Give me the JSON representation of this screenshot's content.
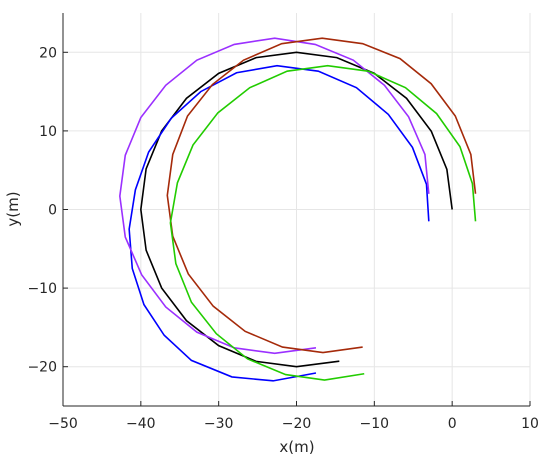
{
  "chart_data": {
    "type": "line",
    "title": "",
    "xlabel": "x(m)",
    "ylabel": "y(m)",
    "xlim": [
      -50,
      10
    ],
    "ylim": [
      -25,
      25
    ],
    "xticks": [
      -50,
      -40,
      -30,
      -20,
      -10,
      0,
      10
    ],
    "yticks": [
      -20,
      -10,
      0,
      10,
      20
    ],
    "xtick_labels": [
      "−50",
      "−40",
      "−30",
      "−20",
      "−10",
      "0",
      "10"
    ],
    "ytick_labels": [
      "−20",
      "−10",
      "0",
      "10",
      "20"
    ],
    "grid": true,
    "legend": "none",
    "series": [
      {
        "color": "#000000",
        "points": [
          [
            0,
            0
          ],
          [
            -0.68,
            5.11
          ],
          [
            -2.68,
            9.95
          ],
          [
            -5.86,
            14.14
          ],
          [
            -10,
            17.32
          ],
          [
            -14.82,
            19.32
          ],
          [
            -20,
            20
          ],
          [
            -25.18,
            19.32
          ],
          [
            -30,
            17.32
          ],
          [
            -34.14,
            14.14
          ],
          [
            -37.32,
            10
          ],
          [
            -39.32,
            5.18
          ],
          [
            -40,
            0
          ],
          [
            -39.32,
            -5.18
          ],
          [
            -37.32,
            -10
          ],
          [
            -34.14,
            -14.14
          ],
          [
            -30,
            -17.32
          ],
          [
            -25.18,
            -19.32
          ],
          [
            -20,
            -20
          ],
          [
            -14.5,
            -19.3
          ]
        ]
      },
      {
        "color": "#0000ff",
        "points": [
          [
            -3,
            -1.5
          ],
          [
            -3.3,
            3.2
          ],
          [
            -5.1,
            7.9
          ],
          [
            -8.2,
            12.1
          ],
          [
            -12.3,
            15.5
          ],
          [
            -17.2,
            17.6
          ],
          [
            -22.5,
            18.3
          ],
          [
            -27.7,
            17.4
          ],
          [
            -32.3,
            15
          ],
          [
            -36.1,
            11.6
          ],
          [
            -39,
            7.3
          ],
          [
            -40.7,
            2.5
          ],
          [
            -41.5,
            -2.5
          ],
          [
            -41.1,
            -7.5
          ],
          [
            -39.6,
            -12.1
          ],
          [
            -37,
            -16
          ],
          [
            -33.5,
            -19.2
          ],
          [
            -28.3,
            -21.3
          ],
          [
            -23,
            -21.8
          ],
          [
            -17.5,
            -20.8
          ]
        ]
      },
      {
        "color": "#9b30ff",
        "points": [
          [
            -3,
            2
          ],
          [
            -3.5,
            7
          ],
          [
            -5.6,
            11.8
          ],
          [
            -8.7,
            15.8
          ],
          [
            -12.7,
            19
          ],
          [
            -17.6,
            21
          ],
          [
            -22.8,
            21.8
          ],
          [
            -28,
            21
          ],
          [
            -32.8,
            19
          ],
          [
            -36.8,
            15.8
          ],
          [
            -40,
            11.7
          ],
          [
            -42,
            6.9
          ],
          [
            -42.7,
            1.7
          ],
          [
            -42,
            -3.5
          ],
          [
            -39.9,
            -8.3
          ],
          [
            -36.8,
            -12.4
          ],
          [
            -32.8,
            -15.6
          ],
          [
            -28,
            -17.6
          ],
          [
            -22.8,
            -18.3
          ],
          [
            -17.5,
            -17.6
          ]
        ]
      },
      {
        "color": "#a52a0a",
        "points": [
          [
            3,
            2
          ],
          [
            2.4,
            7
          ],
          [
            0.4,
            11.9
          ],
          [
            -2.7,
            16
          ],
          [
            -6.7,
            19.2
          ],
          [
            -11.5,
            21.1
          ],
          [
            -16.7,
            21.8
          ],
          [
            -21.9,
            21.1
          ],
          [
            -26.8,
            19
          ],
          [
            -30.8,
            15.9
          ],
          [
            -34,
            11.9
          ],
          [
            -35.9,
            7
          ],
          [
            -36.6,
            1.8
          ],
          [
            -35.9,
            -3.4
          ],
          [
            -33.9,
            -8.2
          ],
          [
            -30.7,
            -12.3
          ],
          [
            -26.6,
            -15.5
          ],
          [
            -21.8,
            -17.5
          ],
          [
            -16.6,
            -18.2
          ],
          [
            -11.5,
            -17.5
          ]
        ]
      },
      {
        "color": "#22cc00",
        "points": [
          [
            3,
            -1.5
          ],
          [
            2.6,
            3.3
          ],
          [
            1,
            8
          ],
          [
            -2,
            12.2
          ],
          [
            -6,
            15.5
          ],
          [
            -10.8,
            17.6
          ],
          [
            -16,
            18.3
          ],
          [
            -21.2,
            17.6
          ],
          [
            -26,
            15.5
          ],
          [
            -30.1,
            12.3
          ],
          [
            -33.3,
            8.2
          ],
          [
            -35.3,
            3.4
          ],
          [
            -36.2,
            -1.7
          ],
          [
            -35.5,
            -6.9
          ],
          [
            -33.5,
            -11.8
          ],
          [
            -30.3,
            -15.8
          ],
          [
            -26.3,
            -19
          ],
          [
            -21.4,
            -21
          ],
          [
            -16.4,
            -21.7
          ],
          [
            -11.3,
            -20.9
          ]
        ]
      }
    ]
  }
}
